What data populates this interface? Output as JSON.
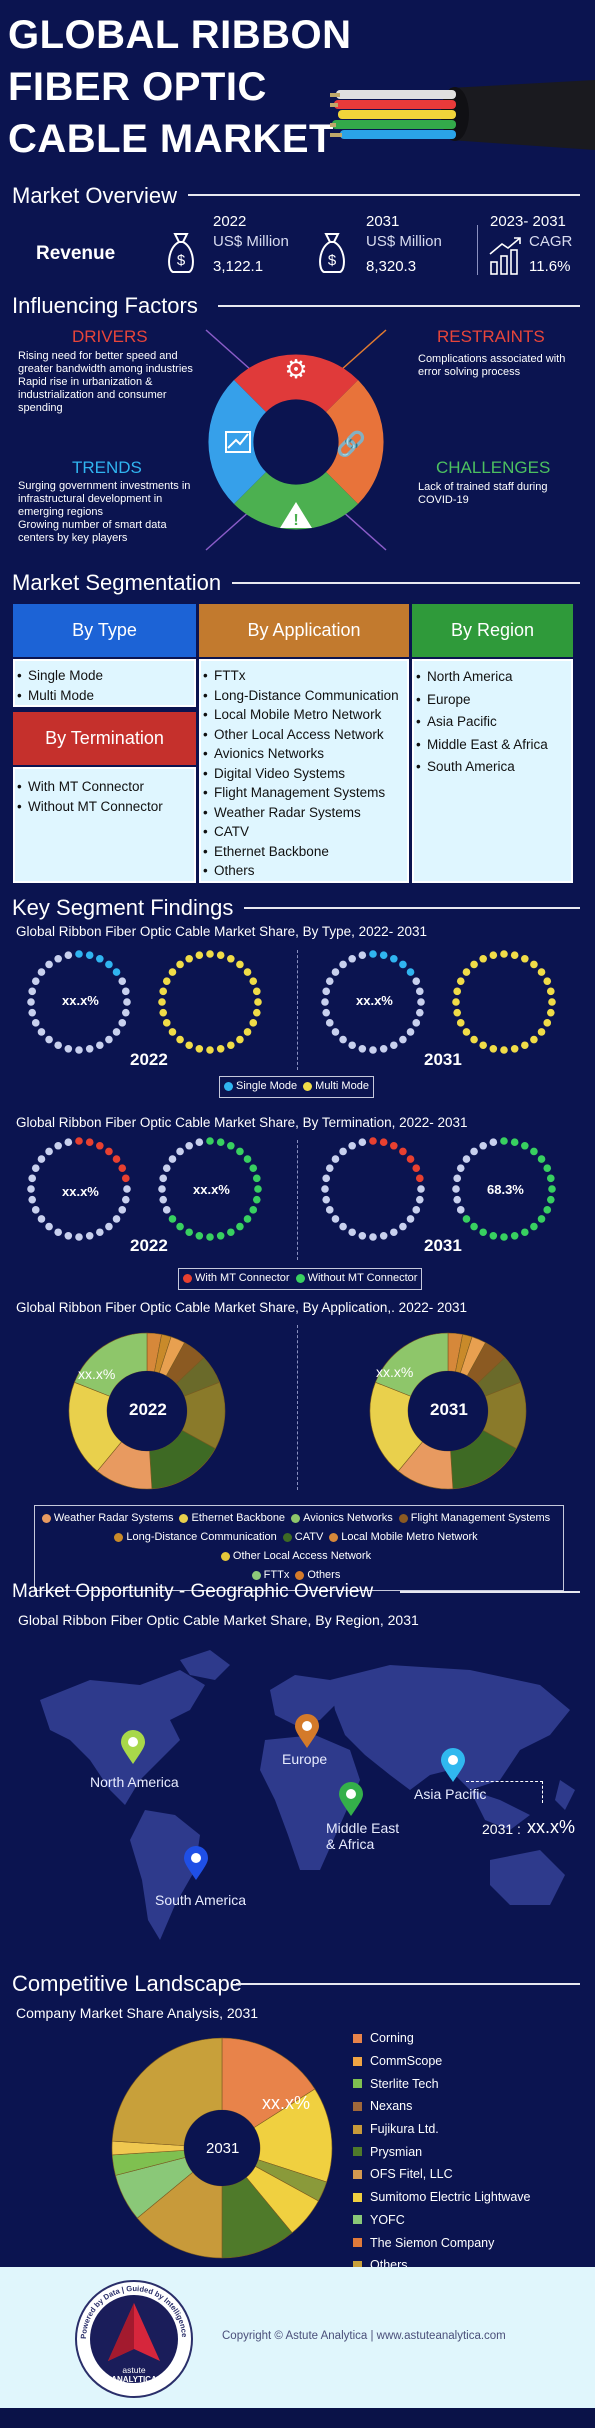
{
  "header": {
    "title_lines": [
      "GLOBAL RIBBON",
      "FIBER OPTIC",
      "CABLE MARKET"
    ]
  },
  "overview": {
    "title": "Market Overview",
    "revenue_label": "Revenue",
    "y2022": {
      "year": "2022",
      "unit": "US$ Million",
      "value": "3,122.1"
    },
    "y2031": {
      "year": "2031",
      "unit": "US$ Million",
      "value": "8,320.3"
    },
    "cagr": {
      "period": "2023- 2031",
      "label": "CAGR",
      "value": "11.6%"
    }
  },
  "factors": {
    "title": "Influencing Factors",
    "drivers": {
      "title": "DRIVERS",
      "items": [
        "Rising need for better speed and greater bandwidth among industries",
        "Rapid rise in urbanization & industrialization and consumer spending"
      ]
    },
    "restraints": {
      "title": "RESTRAINTS",
      "items": [
        "Complications associated with error solving process"
      ]
    },
    "trends": {
      "title": "TRENDS",
      "items": [
        "Surging government investments in infrastructural development in emerging regions",
        "Growing number of smart data centers by key players"
      ]
    },
    "challenges": {
      "title": "CHALLENGES",
      "items": [
        "Lack of trained staff during COVID-19"
      ]
    }
  },
  "segmentation": {
    "title": "Market Segmentation",
    "by_type": {
      "title": "By Type",
      "items": [
        "Single Mode",
        "Multi Mode"
      ]
    },
    "by_termination": {
      "title": "By Termination",
      "items": [
        "With MT Connector",
        "Without MT Connector"
      ]
    },
    "by_application": {
      "title": "By Application",
      "items": [
        "FTTx",
        "Long-Distance Communication",
        "Local Mobile Metro Network",
        "Other Local Access Network",
        "Avionics Networks",
        "Digital Video Systems",
        "Flight Management Systems",
        "Weather Radar Systems",
        "CATV",
        "Ethernet Backbone",
        "Others"
      ]
    },
    "by_region": {
      "title": "By Region",
      "items": [
        "North America",
        "Europe",
        "Asia Pacific",
        "Middle East & Africa",
        "South America"
      ]
    }
  },
  "findings": {
    "title": "Key Segment Findings",
    "type_chart": {
      "title": "Global Ribbon Fiber Optic Cable Market Share, By Type,  2022- 2031",
      "label_2022": "xx.x%",
      "label_2031": "xx.x%",
      "year_a": "2022",
      "year_b": "2031",
      "legend": [
        "Single Mode",
        "Multi Mode"
      ]
    },
    "term_chart": {
      "title": "Global Ribbon Fiber Optic Cable Market Share, By Termination,  2022- 2031",
      "label_2022a": "xx.x%",
      "label_2022b": "xx.x%",
      "label_2031b": "68.3%",
      "year_a": "2022",
      "year_b": "2031",
      "legend": [
        "With MT Connector",
        "Without MT Connector"
      ]
    },
    "app_chart": {
      "title": "Global Ribbon Fiber Optic Cable Market Share, By Application,.  2022- 2031",
      "label_2022": "xx.x%",
      "label_2031": "xx.x%",
      "year_a": "2022",
      "year_b": "2031",
      "legend_rows": [
        [
          "Weather Radar Systems",
          "Ethernet Backbone",
          "Avionics Networks",
          "Flight Management Systems"
        ],
        [
          "Long-Distance Communication",
          "CATV",
          "Local Mobile Metro Network",
          "Other Local Access Network"
        ],
        [
          "FTTx",
          "Others"
        ]
      ]
    }
  },
  "opportunity": {
    "title": "Market Opportunity - Geographic Overview",
    "subtitle": "Global Ribbon Fiber Optic Cable Market Share, By Region,  2031",
    "regions": [
      "North America",
      "Europe",
      "Middle East & Africa",
      "Asia Pacific",
      "South America"
    ],
    "callout_year": "2031 :",
    "callout_value": "xx.x%"
  },
  "competitive": {
    "title": "Competitive Landscape",
    "subtitle": "Company Market Share Analysis,  2031",
    "center": "2031",
    "label": "xx.x%",
    "companies": [
      "Corning",
      "CommScope",
      "Sterlite Tech",
      "Nexans",
      "Fujikura Ltd.",
      "Prysmian",
      "OFS Fitel, LLC",
      "Sumitomo Electric Lightwave",
      "YOFC",
      "The Siemon Company",
      "Others"
    ]
  },
  "footer": {
    "copyright": "Copyright © Astute Analytica  |  www.astuteanalytica.com",
    "brand_top": "astute",
    "brand_bottom": "ANALYTICA",
    "seal_text": "Powered by Data | Guided by Intelligence"
  },
  "colors": {
    "bg": "#0b1450",
    "blue_hdr": "#1c63d6",
    "orange_hdr": "#c27a2e",
    "green_hdr": "#2f9a3a",
    "red_hdr": "#c5302c",
    "single_mode": "#30b4f0",
    "multi_mode": "#f0dc48",
    "with_mt": "#e84030",
    "without_mt": "#38d060",
    "app_colors": [
      "#e89a60",
      "#e9d04c",
      "#8ec66a",
      "#8b5a22",
      "#c98a2a",
      "#3e6a24",
      "#d6883a",
      "#e6c83a",
      "#8dc87a",
      "#d57a2a"
    ],
    "company_colors": [
      "#e8834a",
      "#f0a544",
      "#7fc050",
      "#a0683a",
      "#c89a3a",
      "#4f7a2a",
      "#d49a50",
      "#f0d040",
      "#8ac878",
      "#e07a3a",
      "#c8a03a"
    ]
  }
}
